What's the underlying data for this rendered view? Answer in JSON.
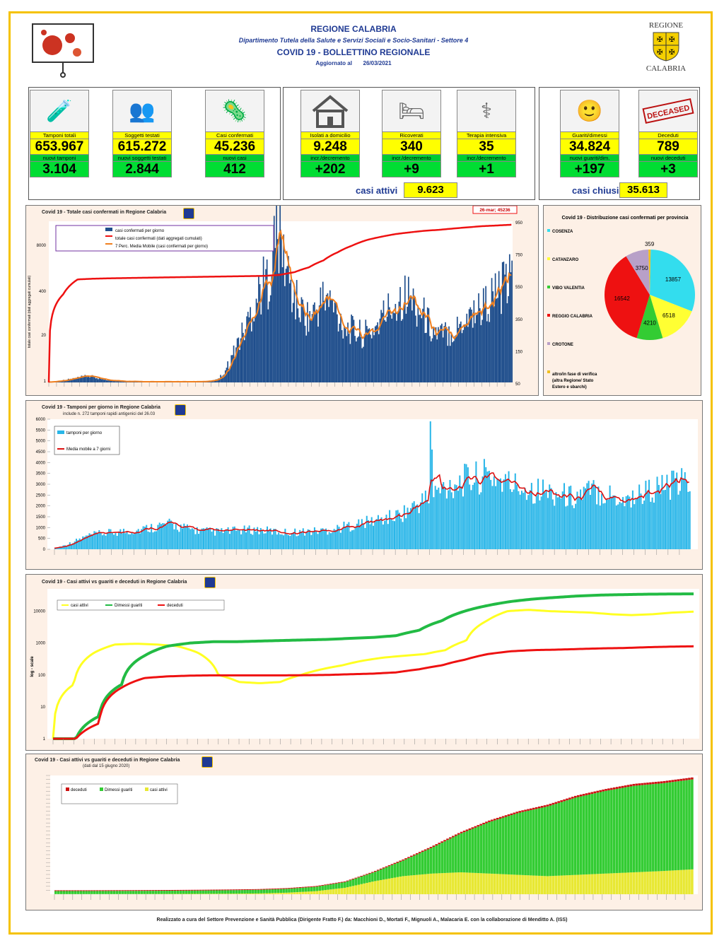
{
  "header": {
    "region": "REGIONE CALABRIA",
    "department": "Dipartimento Tutela della Salute e Servizi Sociali e Socio-Sanitari - Settore 4",
    "bulletin": "COVID 19 - BOLLETTINO REGIONALE",
    "updated_label": "Aggiornato al",
    "updated_date": "26/03/2021",
    "logo_top": "REGIONE",
    "logo_bottom": "CALABRIA"
  },
  "kpis": [
    {
      "label": "Tamponi totali",
      "value": "653.967",
      "sub_label": "nuovi tamponi",
      "sub_value": "3.104",
      "icon": "lab-icon"
    },
    {
      "label": "Soggetti testati",
      "value": "615.272",
      "sub_label": "nuovi soggetti testati",
      "sub_value": "2.844",
      "icon": "people-icon"
    },
    {
      "label": "Casi confermati",
      "value": "45.236",
      "sub_label": "nuovi casi",
      "sub_value": "412",
      "icon": "virus-people-icon"
    },
    {
      "label": "Isolati a domicilio",
      "value": "9.248",
      "sub_label": "incr./decremento",
      "sub_value": "+202",
      "icon": "house-icon"
    },
    {
      "label": "Ricoverati",
      "value": "340",
      "sub_label": "incr./decremento",
      "sub_value": "+9",
      "icon": "bed-icon"
    },
    {
      "label": "Terapia intensiva",
      "value": "35",
      "sub_label": "incr./decremento",
      "sub_value": "+1",
      "icon": "icu-icon"
    },
    {
      "label": "Guariti/dimessi",
      "value": "34.824",
      "sub_label": "nuovi guariti/dim.",
      "sub_value": "+197",
      "icon": "recovered-icon"
    },
    {
      "label": "Deceduti",
      "value": "789",
      "sub_label": "nuovi deceduti",
      "sub_value": "+3",
      "icon": "deceased-stamp-icon"
    }
  ],
  "summary": {
    "active_label": "casi attivi",
    "active_value": "9.623",
    "closed_label": "casi chiusi",
    "closed_value": "35.613"
  },
  "stamp_text": "DECEASED",
  "chart1": {
    "title": "Covid 19 - Totale casi confermati in Regione Calabria",
    "callout": "26-mar; 45236",
    "legend": [
      "casi confermati per giorno",
      "totale casi confermati (dati aggregati cumulati)",
      "7 Perc. Media Mobile (casi confermati per giorno)"
    ],
    "ylabel": "totale casi confermati (dati aggregati cumulati)",
    "left_ticks": [
      "8000",
      "400",
      "20",
      "1"
    ],
    "right_ticks": [
      "950",
      "750",
      "550",
      "350",
      "150",
      "50"
    ]
  },
  "pie": {
    "title": "Covid 19 - Distribuzione casi confermati per provincia",
    "legend": [
      "COSENZA",
      "CATANZARO",
      "VIBO VALENTIA",
      "REGGIO CALABRIA",
      "CROTONE",
      "altro/in fase di verifica (altra Regione/ Stato Estero e sbarchi)"
    ],
    "colors": [
      "#33ddee",
      "#ffff33",
      "#33cc33",
      "#ee1111",
      "#b8a0c8",
      "#f0c020"
    ]
  },
  "chart2": {
    "title": "Covid 19 - Tamponi per giorno in Regione Calabria",
    "subtitle": "include n. 272 tamponi rapidi antigenici del 26.03",
    "legend": [
      "tamponi per giorno",
      "Media mobile a 7 giorni"
    ],
    "y_ticks": [
      "6000",
      "5500",
      "5000",
      "4500",
      "4000",
      "3500",
      "3000",
      "2500",
      "2000",
      "1500",
      "1000",
      "500",
      "0"
    ]
  },
  "chart3": {
    "title": "Covid 19 - Casi attivi vs guariti e deceduti in Regione Calabria",
    "legend": [
      "casi attivi",
      "Dimessi guariti",
      "deceduti"
    ],
    "ylabel": "log - scale",
    "y_ticks": [
      "10000",
      "1000",
      "100",
      "10",
      "1"
    ]
  },
  "chart4": {
    "title": "Covid 19 - Casi attivi vs guariti e deceduti in Regione Calabria",
    "subtitle": "(dati dal 15 giugno 2020)",
    "legend": [
      "deceduti",
      "Dimessi guariti",
      "casi attivi"
    ]
  },
  "chart_data": [
    {
      "type": "pie",
      "title": "Covid 19 - Distribuzione casi confermati per provincia",
      "categories": [
        "COSENZA",
        "CATANZARO",
        "VIBO VALENTIA",
        "REGGIO CALABRIA",
        "CROTONE",
        "altro/in fase di verifica (altra Regione/ Stato Estero e sbarchi)"
      ],
      "values": [
        13857,
        6518,
        4210,
        16542,
        3750,
        359
      ]
    },
    {
      "type": "bar",
      "title": "Covid 19 - Totale casi confermati in Regione Calabria",
      "series": [
        {
          "name": "casi confermati per giorno",
          "values": [
            2,
            8,
            14,
            22,
            30,
            38,
            28,
            18,
            12,
            8,
            6,
            5,
            4,
            4,
            4,
            4,
            4,
            4,
            4,
            5,
            6,
            12,
            40,
            120,
            230,
            320,
            450,
            560,
            620,
            900,
            720,
            520,
            430,
            380,
            420,
            500,
            460,
            380,
            320,
            300,
            280,
            300,
            350,
            420,
            460,
            520,
            500,
            440,
            380,
            300,
            280,
            300,
            320,
            380,
            420,
            440,
            480,
            520,
            560,
            600
          ]
        },
        {
          "name": "totale casi confermati (dati aggregati cumulati)",
          "values": [
            1,
            400,
            1100,
            1150,
            1180,
            1200,
            1220,
            1240,
            1260,
            1280,
            1300,
            1320,
            1340,
            1360,
            1380,
            1400,
            1500,
            1800,
            2500,
            4000,
            7000,
            11000,
            16000,
            20000,
            24000,
            27000,
            30000,
            32000,
            35000,
            38000,
            41000,
            43000,
            45236
          ]
        },
        {
          "name": "7 Perc. Media Mobile (casi confermati per giorno)"
        }
      ]
    },
    {
      "type": "bar",
      "title": "Covid 19 - Tamponi per giorno in Regione Calabria",
      "ylim": [
        0,
        6000
      ],
      "series": [
        {
          "name": "tamponi per giorno",
          "values": [
            50,
            200,
            400,
            600,
            700,
            750,
            800,
            850,
            900,
            1000,
            1100,
            1150,
            1000,
            900,
            850,
            800,
            820,
            850,
            880,
            900,
            850,
            800,
            780,
            800,
            820,
            850,
            900,
            1000,
            1100,
            1200,
            1300,
            1400,
            1500,
            1700,
            2000,
            2300,
            2600,
            2900,
            3100,
            3200,
            3300,
            3400,
            3200,
            3000,
            2900,
            2800,
            2700,
            2600,
            2500,
            2400,
            2600,
            2700,
            2600,
            2400,
            2300,
            2500,
            2700,
            2800,
            2900,
            3000,
            3100
          ]
        },
        {
          "name": "Media mobile a 7 giorni"
        }
      ]
    },
    {
      "type": "line",
      "title": "Covid 19 - Casi attivi vs guariti e deceduti in Regione Calabria",
      "ylabel": "log - scale",
      "series": [
        {
          "name": "casi attivi",
          "values": [
            1,
            50,
            500,
            900,
            950,
            900,
            800,
            500,
            100,
            60,
            55,
            60,
            100,
            150,
            200,
            280,
            350,
            400,
            450,
            600,
            1200,
            5000,
            10000,
            11000,
            10000,
            9500,
            9000,
            8000,
            7500,
            8000,
            9000,
            9623
          ]
        },
        {
          "name": "Dimessi guariti",
          "values": [
            1,
            1,
            5,
            50,
            400,
            800,
            1000,
            1100,
            1100,
            1150,
            1200,
            1250,
            1300,
            1400,
            1500,
            1700,
            2500,
            5000,
            10000,
            15000,
            20000,
            24000,
            27000,
            30000,
            32000,
            33000,
            34000,
            34500,
            34824
          ]
        },
        {
          "name": "deceduti",
          "values": [
            1,
            1,
            3,
            40,
            80,
            90,
            95,
            97,
            97,
            97,
            97,
            98,
            100,
            105,
            110,
            120,
            150,
            200,
            300,
            450,
            550,
            600,
            620,
            650,
            680,
            700,
            740,
            770,
            789
          ]
        }
      ]
    },
    {
      "type": "area",
      "title": "Covid 19 - Casi attivi vs guariti e deceduti in Regione Calabria",
      "series": [
        {
          "name": "deceduti"
        },
        {
          "name": "Dimessi guariti"
        },
        {
          "name": "casi attivi"
        }
      ]
    }
  ],
  "footer": "Realizzato a cura del Settore Prevenzione e Sanità Pubblica (Dirigente Fratto F.) da:  Macchioni D., Mortati F., Mignuoli A., Malacaria E. con la collaborazione di Menditto A. (ISS)"
}
